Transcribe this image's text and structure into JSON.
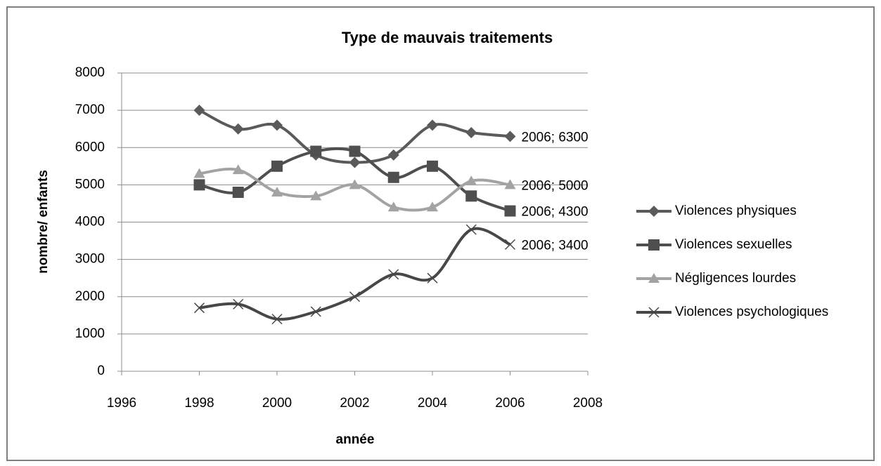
{
  "chart_data": {
    "type": "line",
    "title": "Type de mauvais traitements",
    "xlabel": "année",
    "ylabel": "nombre/ enfants",
    "x": [
      1998,
      1999,
      2000,
      2001,
      2002,
      2003,
      2004,
      2005,
      2006
    ],
    "xlim": [
      1996,
      2008
    ],
    "xticks": [
      1996,
      1998,
      2000,
      2002,
      2004,
      2006,
      2008
    ],
    "ylim": [
      0,
      8000
    ],
    "yticks": [
      0,
      1000,
      2000,
      3000,
      4000,
      5000,
      6000,
      7000,
      8000
    ],
    "grid": true,
    "smooth": true,
    "legend": "right",
    "series": [
      {
        "name": "Violences physiques",
        "color": "#5a5a5a",
        "marker": "diamond",
        "values": [
          7000,
          6500,
          6600,
          5800,
          5600,
          5800,
          6600,
          6400,
          6300
        ],
        "value_labels": [
          null,
          null,
          null,
          null,
          null,
          null,
          null,
          null,
          "2006; 6300"
        ]
      },
      {
        "name": "Violences sexuelles",
        "color": "#4f4f4f",
        "marker": "square",
        "values": [
          5000,
          4800,
          5500,
          5900,
          5900,
          5200,
          5500,
          4700,
          4300
        ],
        "value_labels": [
          null,
          null,
          null,
          null,
          null,
          null,
          null,
          null,
          "2006; 4300"
        ]
      },
      {
        "name": "Négligences lourdes",
        "color": "#a3a3a3",
        "marker": "triangle",
        "values": [
          5300,
          5400,
          4800,
          4700,
          5000,
          4400,
          4400,
          5100,
          5000
        ],
        "value_labels": [
          null,
          null,
          null,
          null,
          null,
          null,
          null,
          null,
          "2006; 5000"
        ]
      },
      {
        "name": "Violences psychologiques",
        "color": "#474747",
        "marker": "x",
        "values": [
          1700,
          1800,
          1400,
          1600,
          2000,
          2600,
          2500,
          3800,
          3400
        ],
        "value_labels": [
          null,
          null,
          null,
          null,
          null,
          null,
          null,
          null,
          "2006; 3400"
        ]
      }
    ]
  }
}
